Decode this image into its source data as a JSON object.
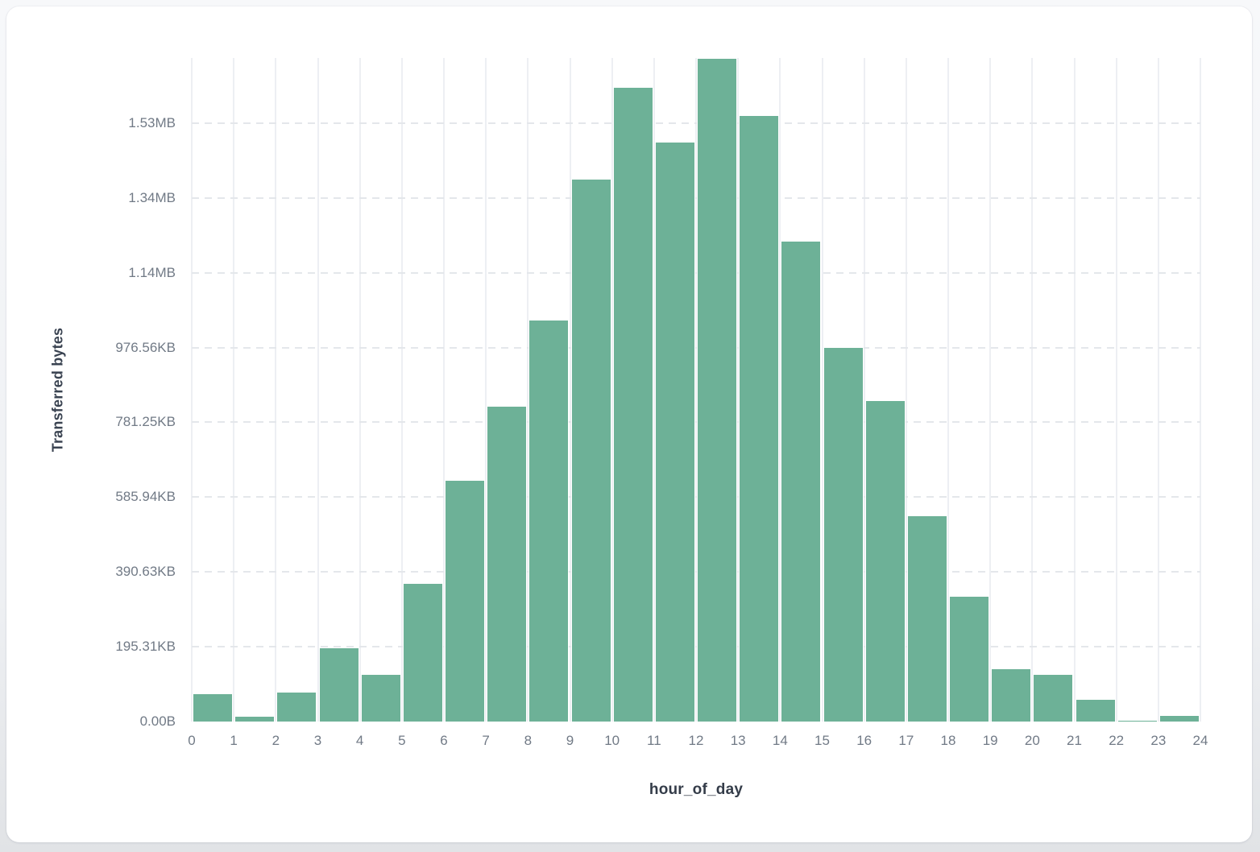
{
  "chart_data": {
    "type": "bar",
    "title": "",
    "xlabel": "hour_of_day",
    "ylabel": "Transferred bytes",
    "unit": "bytes",
    "x": [
      0,
      1,
      2,
      3,
      4,
      5,
      6,
      7,
      8,
      9,
      10,
      11,
      12,
      13,
      14,
      15,
      16,
      17,
      18,
      19,
      20,
      21,
      22,
      23
    ],
    "values": [
      75000,
      15000,
      80000,
      198000,
      127000,
      370000,
      645000,
      843000,
      1075000,
      1452000,
      1697000,
      1551000,
      1774000,
      1622000,
      1286000,
      1002000,
      860000,
      551000,
      335000,
      142000,
      127000,
      60000,
      4500,
      17000
    ],
    "ylim": [
      0,
      1774000
    ],
    "x_ticks": [
      0,
      1,
      2,
      3,
      4,
      5,
      6,
      7,
      8,
      9,
      10,
      11,
      12,
      13,
      14,
      15,
      16,
      17,
      18,
      19,
      20,
      21,
      22,
      23,
      24
    ],
    "y_ticks": [
      {
        "value": 0,
        "label": "0.00B"
      },
      {
        "value": 200000,
        "label": "195.31KB"
      },
      {
        "value": 400000,
        "label": "390.63KB"
      },
      {
        "value": 600000,
        "label": "585.94KB"
      },
      {
        "value": 800000,
        "label": "781.25KB"
      },
      {
        "value": 1000000,
        "label": "976.56KB"
      },
      {
        "value": 1200000,
        "label": "1.14MB"
      },
      {
        "value": 1400000,
        "label": "1.34MB"
      },
      {
        "value": 1600000,
        "label": "1.53MB"
      }
    ],
    "grid": {
      "horizontal": "dashed",
      "vertical": "solid"
    },
    "legend": "none"
  },
  "colors": {
    "bar_fill": "#6db197",
    "bar_stroke": "#ffffff",
    "grid_vertical": "#edeff3",
    "grid_horizontal": "#e4e7eb",
    "tick_label": "#717a86",
    "axis_title": "#3a4351",
    "card_background": "#ffffff",
    "page_background": "#e9ebee"
  }
}
